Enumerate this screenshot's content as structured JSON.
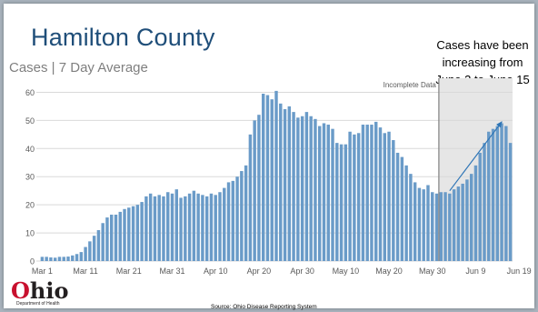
{
  "slide": {
    "title": "Hamilton County",
    "subtitle": "Cases | 7 Day Average",
    "note_lines": [
      "Cases have been",
      "increasing from",
      "June 3 to June 15"
    ],
    "incomplete_label": "Incomplete Data",
    "logo_prefix": "O",
    "logo_rest": "hio",
    "logo_sub": "Department of Health",
    "source": "Source: Ohio Disease Reporting System"
  },
  "colors": {
    "bar": "#6a9bc8",
    "grid": "#d9d9d9",
    "shade": "#e6e6e6",
    "divider": "#808080",
    "arrow": "#2e75b6",
    "title": "#1f4e79"
  },
  "chart_data": {
    "type": "bar",
    "title": "Hamilton County",
    "subtitle": "Cases | 7 Day Average",
    "ylim": [
      0,
      65
    ],
    "yticks": [
      0,
      10,
      20,
      30,
      40,
      50,
      60
    ],
    "xtick_labels": [
      "Mar 1",
      "Mar 11",
      "Mar 21",
      "Mar 31",
      "Apr 10",
      "Apr 20",
      "Apr 30",
      "May 10",
      "May 20",
      "May 30",
      "Jun 9",
      "Jun 19"
    ],
    "xtick_index": [
      0,
      10,
      20,
      30,
      40,
      50,
      60,
      70,
      80,
      90,
      100,
      110
    ],
    "incomplete_from_index": 92,
    "trend_arrow": {
      "from_index": 94,
      "from_value": 25,
      "to_index": 106,
      "to_value": 49.5
    },
    "values": [
      1.5,
      1.5,
      1.3,
      1.2,
      1.5,
      1.5,
      1.6,
      2.0,
      2.5,
      3.2,
      5.0,
      7.0,
      9.0,
      11.0,
      13.5,
      15.5,
      16.5,
      16.5,
      17.5,
      18.5,
      19.0,
      19.5,
      20.0,
      21.0,
      23.0,
      24.0,
      23.0,
      23.5,
      23.0,
      24.5,
      24.0,
      25.5,
      22.5,
      23.0,
      24.0,
      25.0,
      24.0,
      23.5,
      23.0,
      24.0,
      23.5,
      24.5,
      26.0,
      28.0,
      28.5,
      30.0,
      32.0,
      34.0,
      45.0,
      50.0,
      52.0,
      59.5,
      59.0,
      57.5,
      60.5,
      56.0,
      54.0,
      55.0,
      53.0,
      51.0,
      51.5,
      53.0,
      51.5,
      50.5,
      48.0,
      49.0,
      48.5,
      47.0,
      42.0,
      41.5,
      41.5,
      46.0,
      45.0,
      45.5,
      48.5,
      48.5,
      48.5,
      49.5,
      47.5,
      45.5,
      46.0,
      43.0,
      38.5,
      37.0,
      34.0,
      31.0,
      28.0,
      26.0,
      25.5,
      27.0,
      24.5,
      24.0,
      24.5,
      24.5,
      24.0,
      25.5,
      26.5,
      27.5,
      29.0,
      31.0,
      34.0,
      38.5,
      42.0,
      46.0,
      47.0,
      48.0,
      49.0,
      48.0,
      42.0
    ]
  }
}
